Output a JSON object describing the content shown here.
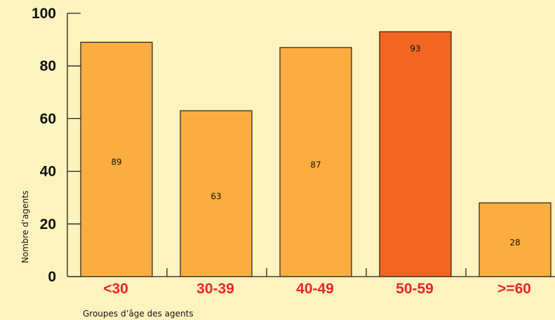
{
  "chart_data": {
    "type": "bar",
    "title": "",
    "xlabel": "Groupes d’âge des agents",
    "ylabel": "Nombre d’agents",
    "categories": [
      "<30",
      "30-39",
      "40-49",
      "50-59",
      ">=60"
    ],
    "values": [
      89,
      63,
      87,
      93,
      28
    ],
    "value_labels": [
      "89",
      "63",
      "87",
      "93",
      "28"
    ],
    "ylim": [
      0,
      100
    ],
    "yticks": [
      0,
      20,
      40,
      60,
      80,
      100
    ],
    "ytick_labels": [
      "0",
      "20",
      "40",
      "60",
      "80",
      "100"
    ],
    "grid": false,
    "legend": "none",
    "highlight_index": 3
  },
  "colors": {
    "background": "#fdf3be",
    "bar": "#fbae3f",
    "bar_highlight": "#f26522",
    "bar_outline": "#231f20",
    "category_label": "#e8262b",
    "axis": "#231f20"
  }
}
